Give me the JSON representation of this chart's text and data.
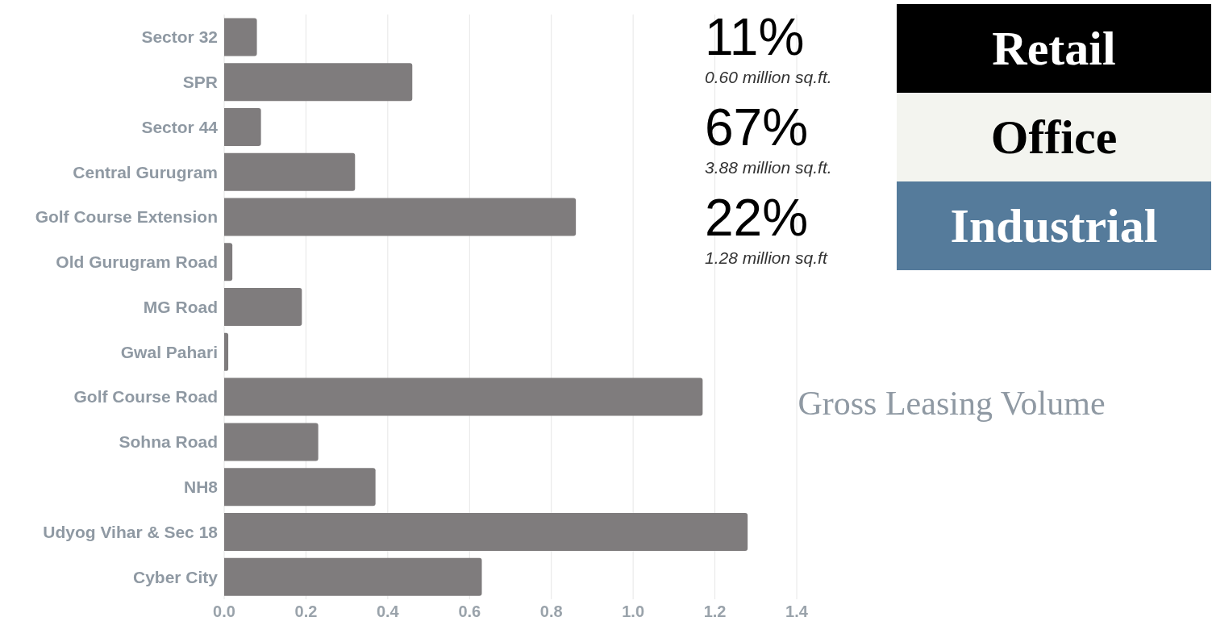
{
  "chart_data": {
    "type": "bar",
    "orientation": "horizontal",
    "title": "Gross Leasing Volume",
    "categories": [
      "Sector 32",
      "SPR",
      "Sector 44",
      "Central Gurugram",
      "Golf Course Extension",
      "Old Gurugram Road",
      "MG Road",
      "Gwal Pahari",
      "Golf Course Road",
      "Sohna Road",
      "NH8",
      "Udyog Vihar & Sec 18",
      "Cyber City"
    ],
    "values": [
      0.08,
      0.46,
      0.09,
      0.32,
      0.86,
      0.02,
      0.19,
      0.01,
      1.17,
      0.23,
      0.37,
      1.28,
      0.63
    ],
    "color": "#7f7c7d",
    "xlim": [
      0,
      1.4
    ],
    "xticks": [
      {
        "value": 0,
        "label": "0.0"
      },
      {
        "value": 0.2,
        "label": "0.2"
      },
      {
        "value": 0.4,
        "label": "0.4"
      },
      {
        "value": 0.6,
        "label": "0.6"
      },
      {
        "value": 0.8,
        "label": "0.8"
      },
      {
        "value": 1,
        "label": "1.0"
      },
      {
        "value": 1.2,
        "label": "1.2"
      },
      {
        "value": 1.4,
        "label": "1.4"
      }
    ],
    "grid": "x",
    "annotations": [
      "11%",
      "0.60 million sq.ft.",
      "67%",
      "3.88 million sq.ft.",
      "22%",
      "1.28 million sq.ft",
      "Retail",
      "Office",
      "Industrial"
    ]
  }
}
